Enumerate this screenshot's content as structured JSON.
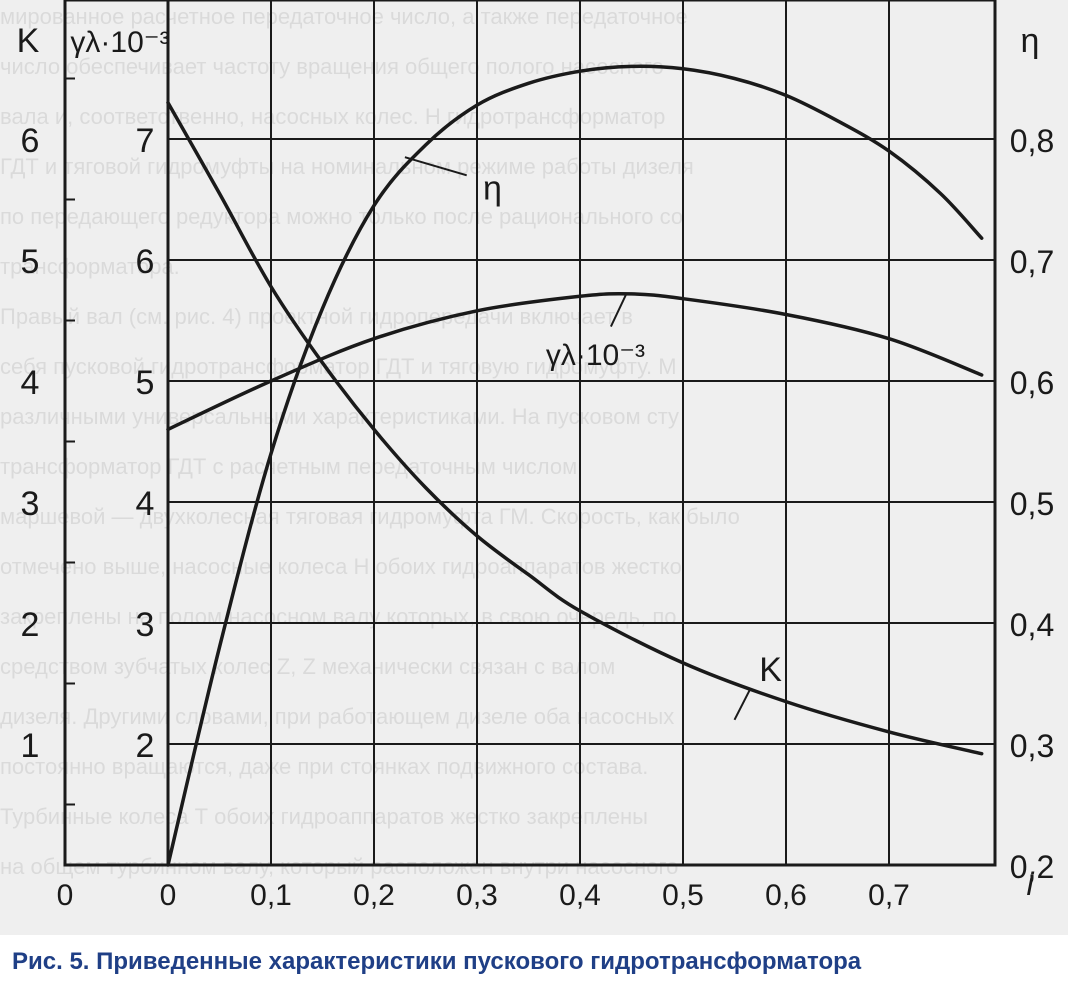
{
  "chart_data": {
    "type": "line",
    "x": {
      "label": "i",
      "range": [
        0,
        0.8
      ],
      "ticks": [
        "0",
        "0,1",
        "0,2",
        "0,3",
        "0,4",
        "0,5",
        "0,6",
        "0,7"
      ],
      "tick_values": [
        0,
        0.1,
        0.2,
        0.3,
        0.4,
        0.5,
        0.6,
        0.7
      ]
    },
    "axes": {
      "K": {
        "label": "K",
        "range": [
          0,
          7
        ],
        "ticks": [
          "0",
          "1",
          "2",
          "3",
          "4",
          "5",
          "6"
        ],
        "tick_values": [
          0,
          1,
          2,
          3,
          4,
          5,
          6
        ]
      },
      "lambda": {
        "label": "γλ·10⁻³",
        "range": [
          1,
          8
        ],
        "ticks": [
          "0",
          "2",
          "3",
          "4",
          "5",
          "6",
          "7"
        ],
        "tick_values": [
          1,
          2,
          3,
          4,
          5,
          6,
          7
        ]
      },
      "eta": {
        "label": "η",
        "range": [
          0.2,
          0.9
        ],
        "ticks": [
          "0,2",
          "0,3",
          "0,4",
          "0,5",
          "0,6",
          "0,7",
          "0,8"
        ],
        "tick_values": [
          0.2,
          0.3,
          0.4,
          0.5,
          0.6,
          0.7,
          0.8
        ]
      }
    },
    "series": [
      {
        "name": "η",
        "axis": "eta",
        "x": [
          0,
          0.05,
          0.1,
          0.15,
          0.2,
          0.25,
          0.3,
          0.35,
          0.4,
          0.45,
          0.5,
          0.55,
          0.6,
          0.65,
          0.7,
          0.75,
          0.79
        ],
        "y": [
          0.2,
          0.38,
          0.54,
          0.66,
          0.745,
          0.795,
          0.828,
          0.846,
          0.856,
          0.86,
          0.858,
          0.85,
          0.836,
          0.815,
          0.79,
          0.755,
          0.718
        ]
      },
      {
        "name": "γλ·10⁻³",
        "axis": "lambda",
        "x": [
          0,
          0.1,
          0.2,
          0.3,
          0.4,
          0.45,
          0.5,
          0.6,
          0.7,
          0.79
        ],
        "y": [
          4.6,
          5.0,
          5.35,
          5.58,
          5.7,
          5.72,
          5.68,
          5.55,
          5.35,
          5.05
        ]
      },
      {
        "name": "K",
        "axis": "K",
        "x": [
          0,
          0.05,
          0.1,
          0.15,
          0.2,
          0.25,
          0.3,
          0.35,
          0.4,
          0.5,
          0.6,
          0.7,
          0.79
        ],
        "y": [
          6.3,
          5.55,
          4.78,
          4.15,
          3.6,
          3.12,
          2.72,
          2.4,
          2.1,
          1.67,
          1.35,
          1.1,
          0.92
        ]
      }
    ],
    "curve_labels": [
      "η",
      "γλ·10⁻³",
      "K"
    ],
    "grid": true,
    "legend": "none"
  },
  "caption": "Рис. 5. Приведенные характеристики пускового гидротрансформатора",
  "background_text": [
    "мированное расчетное передаточное число, а также передаточное",
    "число обеспечивает частоту вращения общего полого насосного",
    "вала и, соответственно, насосных колес. Н гидротрансформатор",
    "ГДТ и тяговой гидромуфты на номинальном режиме работы дизеля",
    "по передающего редуктора можно только после рационального со",
    "трансформатора.",
    "Правый вал (см. рис. 4) проектной гидропередачи включает в",
    "себя пусковой гидротрансформатор ГДТ и тяговую гидромуфту. М",
    "различными универсальными характеристиками. На пусковом сту",
    "трансформатор ГДТ с расчетным передаточным числом",
    "маршевой — двухколесная тяговая гидромуфта ГМ. Скорость, как было",
    "отмечено выше, насосные колеса Н обоих гидроаппаратов жестко",
    "закреплены на полом насосном валу которых, в свою очередь, по",
    "средством зубчатых колес Z, Z механически связан с валом",
    "дизеля. Другими словами, при работающем дизеле оба насосных",
    "постоянно вращаются, даже при стоянках подвижного состава.",
    "Турбинные колеса Т обоих гидроаппаратов жестко закреплены",
    "на общем турбинном валу, который расположен внутри насосного"
  ],
  "colors": {
    "caption": "#1f3f86",
    "ink": "#1a1a1a",
    "paper": "#efefef"
  }
}
